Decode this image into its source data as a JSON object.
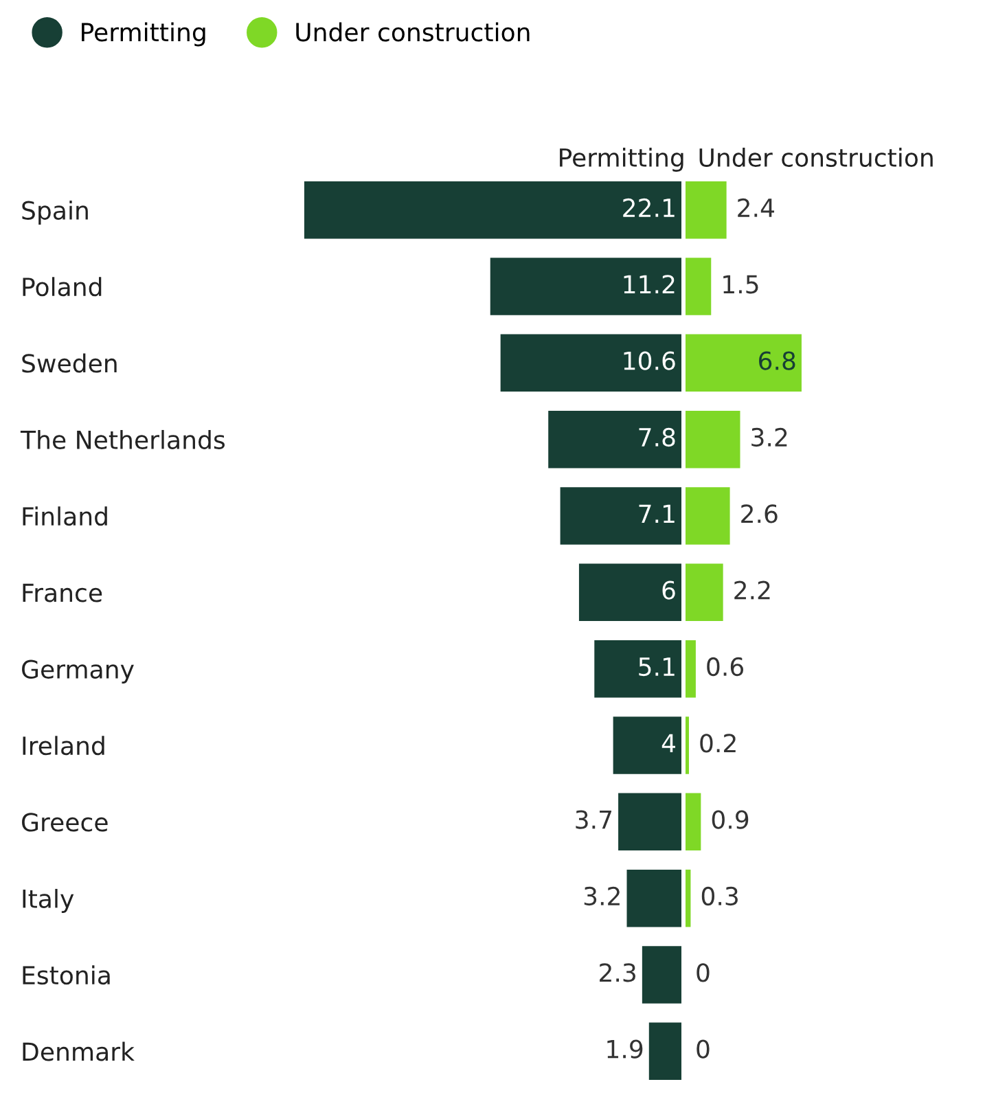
{
  "chart_data": [
    {
      "type": "bar",
      "orientation": "horizontal",
      "legend": "top left",
      "data_labels": true,
      "categories": [
        "Spain",
        "Poland",
        "Sweden",
        "The Netherlands",
        "Finland",
        "France",
        "Germany",
        "Ireland",
        "Greece",
        "Italy",
        "Estonia",
        "Denmark"
      ],
      "series": [
        {
          "name": "Permitting",
          "color": "#173f35",
          "values": [
            22.1,
            11.2,
            10.6,
            7.8,
            7.1,
            6,
            5.1,
            4,
            3.7,
            3.2,
            2.3,
            1.9
          ]
        }
      ]
    },
    {
      "type": "bar",
      "orientation": "horizontal",
      "legend": "top left",
      "data_labels": true,
      "categories": [
        null,
        null,
        null,
        null,
        null,
        null,
        null,
        null,
        null,
        null,
        null,
        null
      ],
      "series": [
        {
          "name": "Under construction",
          "color": "#7fd826",
          "values": [
            2.4,
            1.5,
            6.8,
            3.2,
            2.6,
            2.2,
            0.6,
            0.2,
            0.9,
            0.3,
            0,
            0
          ]
        }
      ]
    }
  ]
}
